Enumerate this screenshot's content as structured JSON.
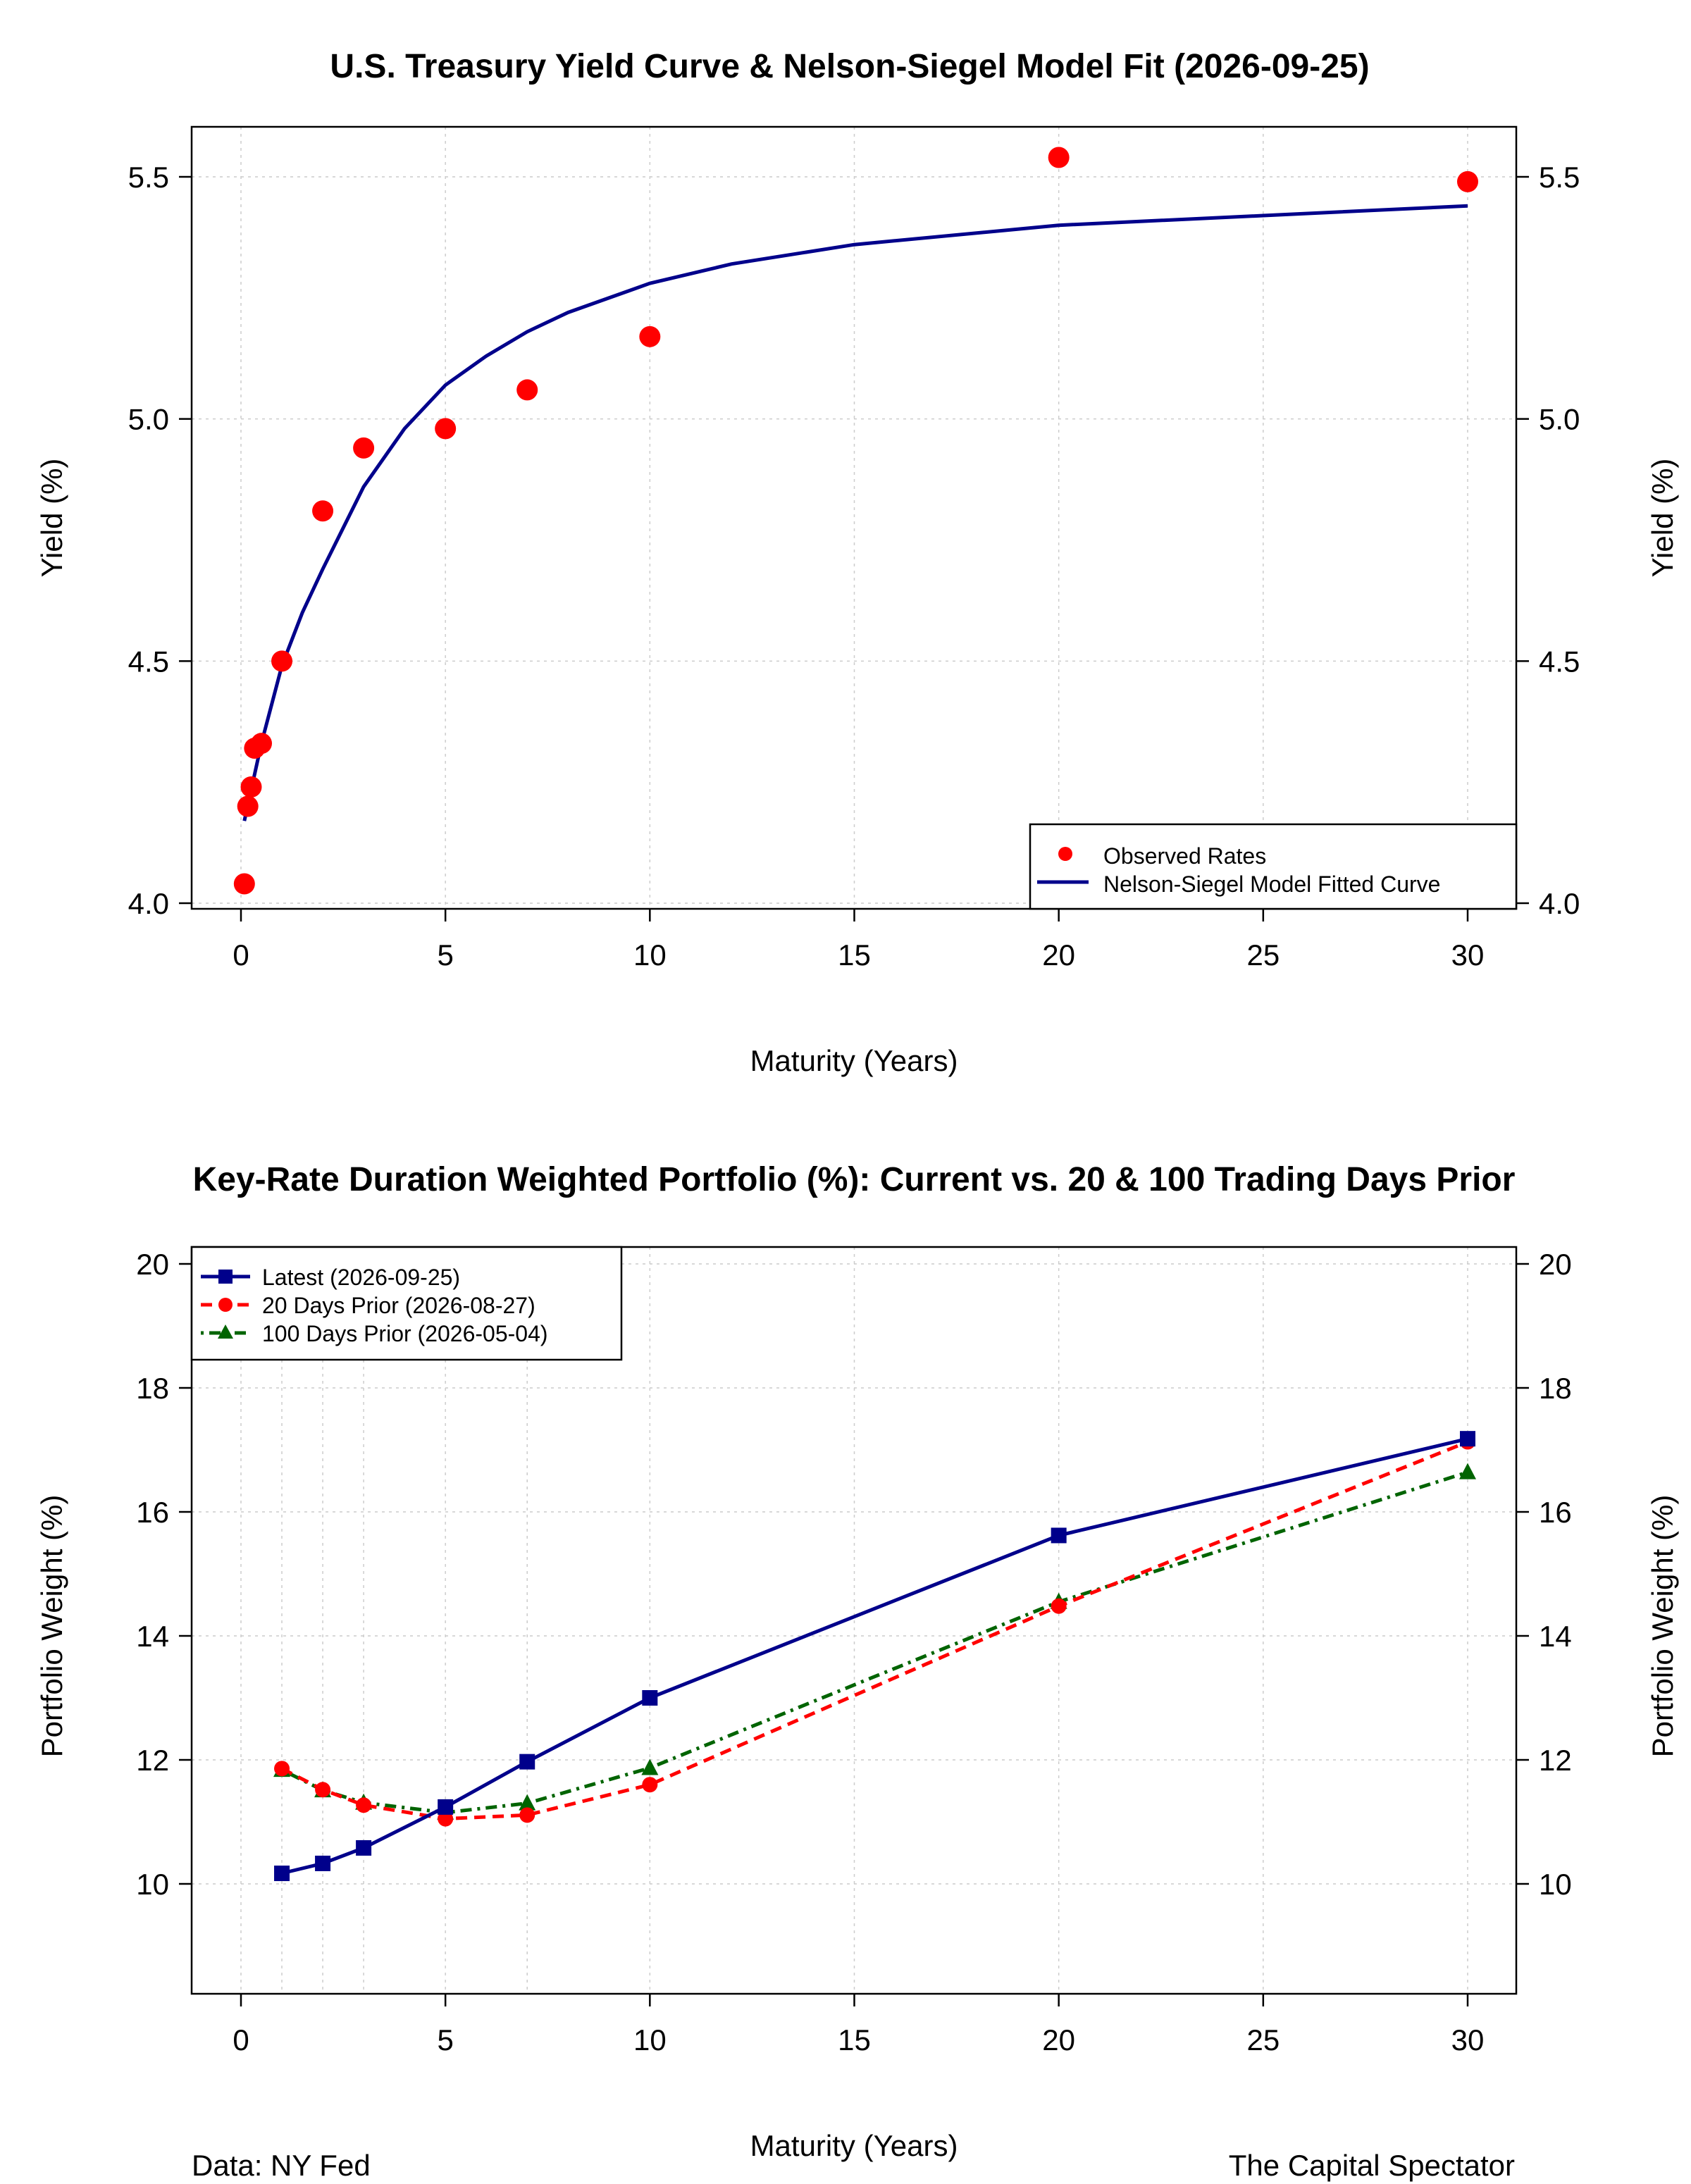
{
  "colors": {
    "observed": "#ff0000",
    "fit": "#00008b",
    "latest": "#00008b",
    "prior20": "#ff0000",
    "prior100": "#006400",
    "grid": "#cccccc",
    "axis": "#000000"
  },
  "footer": {
    "source": "Data: NY Fed",
    "credit": "The Capital Spectator"
  },
  "chart_data": [
    {
      "type": "scatter",
      "title": "U.S. Treasury Yield Curve & Nelson-Siegel Model Fit (2026-09-25)",
      "xlabel": "Maturity (Years)",
      "ylabel": "Yield (%)",
      "ylabel_right": "Yield (%)",
      "xlim": [
        0,
        30
      ],
      "ylim": [
        4.0,
        5.5
      ],
      "xticks": [
        0,
        5,
        10,
        15,
        20,
        25,
        30
      ],
      "yticks": [
        4.0,
        4.5,
        5.0,
        5.5
      ],
      "ytick_labels": [
        "4.0",
        "4.5",
        "5.0",
        "5.5"
      ],
      "grid": true,
      "legend_position": "bottom-right",
      "series": [
        {
          "name": "Observed Rates",
          "kind": "points",
          "color": "#ff0000",
          "x": [
            0.083,
            0.167,
            0.25,
            0.333,
            0.5,
            1,
            2,
            3,
            5,
            7,
            10,
            20,
            30
          ],
          "y": [
            4.04,
            4.2,
            4.24,
            4.32,
            4.33,
            4.5,
            4.81,
            4.94,
            4.98,
            5.06,
            5.17,
            5.54,
            5.49
          ]
        },
        {
          "name": "Nelson-Siegel Model Fitted Curve",
          "kind": "line",
          "color": "#00008b",
          "x": [
            0.083,
            0.5,
            1,
            1.5,
            2,
            3,
            4,
            5,
            6,
            7,
            8,
            10,
            12,
            15,
            20,
            25,
            30
          ],
          "y": [
            4.17,
            4.33,
            4.49,
            4.6,
            4.69,
            4.86,
            4.98,
            5.07,
            5.13,
            5.18,
            5.22,
            5.28,
            5.32,
            5.36,
            5.4,
            5.42,
            5.44
          ]
        }
      ]
    },
    {
      "type": "line",
      "title": "Key-Rate Duration Weighted Portfolio (%): Current vs. 20 & 100 Trading Days Prior",
      "xlabel": "Maturity (Years)",
      "ylabel": "Portfolio Weight (%)",
      "ylabel_right": "Portfolio Weight (%)",
      "xlim": [
        0,
        30
      ],
      "ylim": [
        8.2,
        20
      ],
      "xticks": [
        0,
        5,
        10,
        15,
        20,
        25,
        30
      ],
      "yticks": [
        10,
        12,
        14,
        16,
        18,
        20
      ],
      "ytick_labels": [
        "10",
        "12",
        "14",
        "16",
        "18",
        "20"
      ],
      "grid": true,
      "legend_position": "top-left",
      "x": [
        1,
        2,
        3,
        5,
        7,
        10,
        20,
        30
      ],
      "series": [
        {
          "name": "Latest (2026-09-25)",
          "color": "#00008b",
          "marker": "square",
          "dash": "solid",
          "values": [
            10.17,
            10.33,
            10.58,
            11.24,
            11.97,
            13.0,
            15.62,
            17.18
          ]
        },
        {
          "name": "20 Days Prior (2026-08-27)",
          "color": "#ff0000",
          "marker": "circle",
          "dash": "dashed",
          "values": [
            11.86,
            11.52,
            11.27,
            11.05,
            11.11,
            11.6,
            14.48,
            17.13
          ]
        },
        {
          "name": "100 Days Prior (2026-05-04)",
          "color": "#006400",
          "marker": "triangle",
          "dash": "dotdash",
          "values": [
            11.84,
            11.51,
            11.31,
            11.15,
            11.3,
            11.87,
            14.55,
            16.64
          ]
        }
      ]
    }
  ]
}
